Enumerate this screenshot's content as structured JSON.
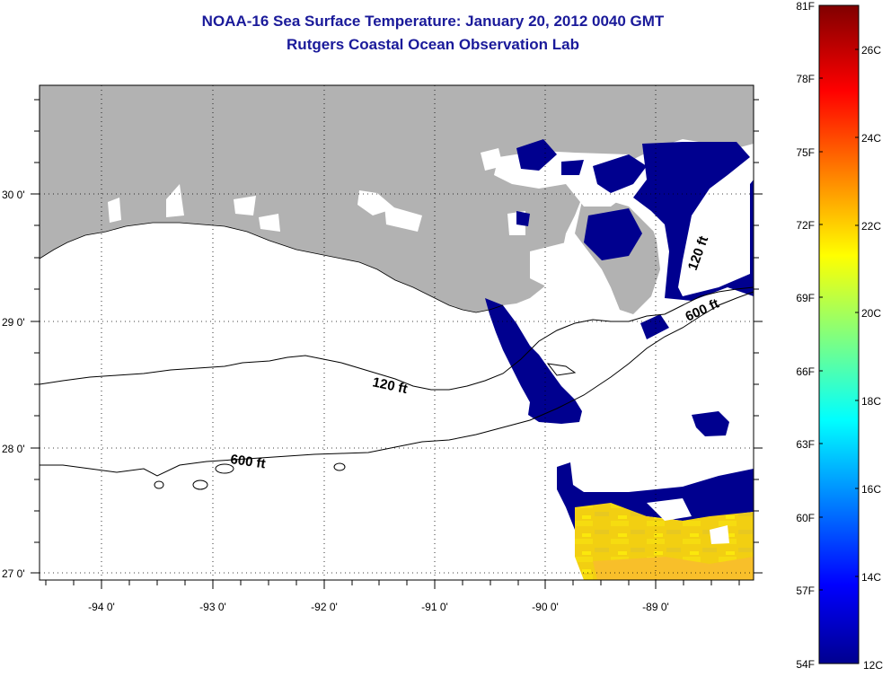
{
  "title": {
    "line1": "NOAA-16 Sea Surface Temperature:  January 20, 2012 0040 GMT",
    "line2": "Rutgers Coastal Ocean Observation Lab"
  },
  "map": {
    "lat_labels": [
      "30 0'",
      "29 0'",
      "28 0'",
      "27 0'"
    ],
    "lon_labels": [
      "-94 0'",
      "-93 0'",
      "-92 0'",
      "-91 0'",
      "-90 0'",
      "-89 0'"
    ],
    "contours": [
      {
        "label": "120 ft"
      },
      {
        "label": "600 ft"
      },
      {
        "label": "120 ft"
      },
      {
        "label": "600 ft"
      }
    ],
    "colors": {
      "land": "#b2b2b2",
      "cloud": "#ffffff",
      "cold_water": "#00008f",
      "warm_water": "#f4d010"
    }
  },
  "colorbar": {
    "fahrenheit": [
      "81F",
      "78F",
      "75F",
      "72F",
      "69F",
      "66F",
      "63F",
      "60F",
      "57F",
      "54F"
    ],
    "celsius": [
      "26C",
      "24C",
      "22C",
      "20C",
      "18C",
      "16C",
      "14C",
      "12C"
    ]
  }
}
